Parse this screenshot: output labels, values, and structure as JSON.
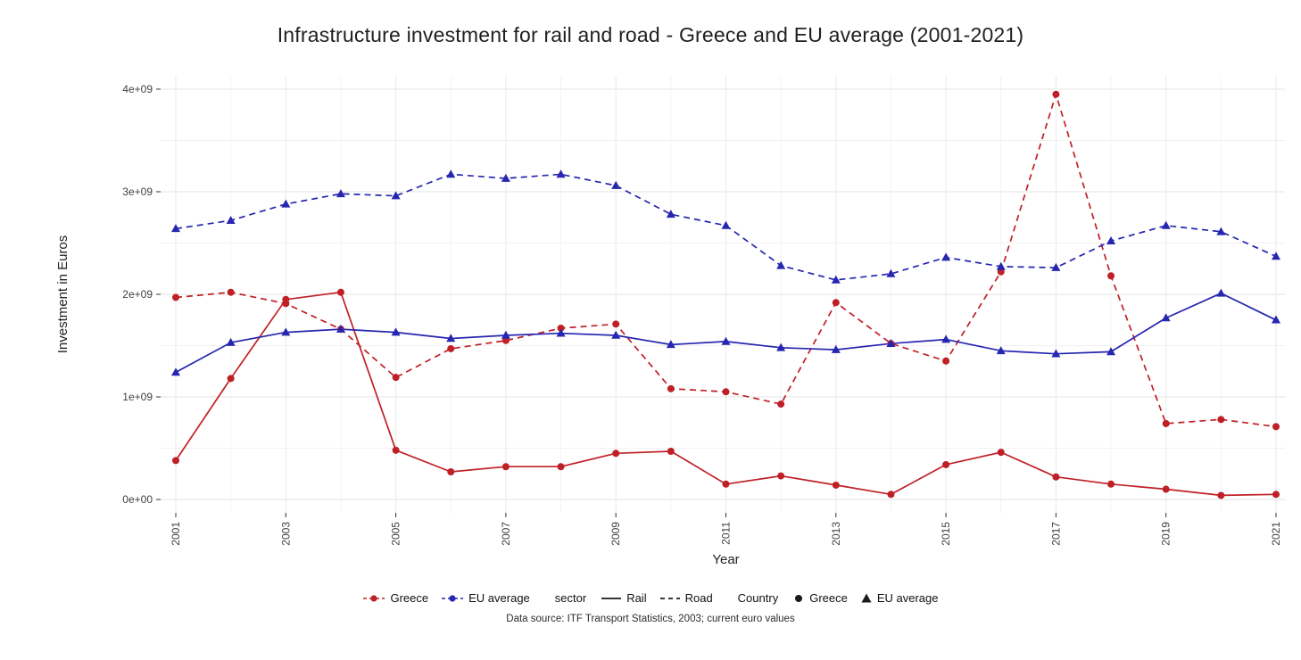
{
  "title": "Infrastructure investment for rail and road - Greece and EU average (2001-2021)",
  "caption": "Data source: ITF Transport Statistics, 2003; current euro values",
  "legend": {
    "greece": "Greece",
    "eu": "EU average",
    "sector_title": "sector",
    "rail": "Rail",
    "road": "Road",
    "country_title": "Country",
    "country_greece": "Greece",
    "country_eu": "EU average"
  },
  "chart_data": {
    "type": "line",
    "title": "Infrastructure investment for rail and road - Greece and EU average (2001-2021)",
    "xlabel": "Year",
    "ylabel": "Investment in Euros",
    "values_unit": "billions of euros",
    "x": [
      2001,
      2002,
      2003,
      2004,
      2005,
      2006,
      2007,
      2008,
      2009,
      2010,
      2011,
      2012,
      2013,
      2014,
      2015,
      2016,
      2017,
      2018,
      2019,
      2020,
      2021
    ],
    "x_ticks": [
      2001,
      2003,
      2005,
      2007,
      2009,
      2011,
      2013,
      2015,
      2017,
      2019,
      2021
    ],
    "y_ticks": [
      0,
      1,
      2,
      3,
      4
    ],
    "y_tick_labels": [
      "0e+00",
      "1e+09",
      "2e+09",
      "3e+09",
      "4e+09"
    ],
    "ylim_billions": [
      -0.13,
      4.13
    ],
    "grid": true,
    "legend_position": "bottom",
    "colors": {
      "greece": "#bf2026",
      "eu": "#2626b0",
      "neutral": "#1a1a1a"
    },
    "series": [
      {
        "id": "greece-rail",
        "name": "Greece Rail",
        "country": "Greece",
        "sector": "Rail",
        "color": "#bf2026",
        "line": "solid",
        "marker": "circle",
        "values": [
          0.38,
          1.18,
          1.95,
          2.02,
          0.48,
          0.27,
          0.32,
          0.32,
          0.45,
          0.47,
          0.15,
          0.23,
          0.14,
          0.05,
          0.34,
          0.46,
          0.22,
          0.15,
          0.1,
          0.04,
          0.05
        ]
      },
      {
        "id": "greece-road",
        "name": "Greece Road",
        "country": "Greece",
        "sector": "Road",
        "color": "#bf2026",
        "line": "dashed",
        "marker": "circle",
        "values": [
          1.97,
          2.02,
          1.91,
          1.66,
          1.19,
          1.47,
          1.55,
          1.67,
          1.71,
          1.08,
          1.05,
          0.93,
          1.92,
          1.52,
          1.35,
          2.22,
          3.95,
          2.18,
          0.74,
          0.78,
          0.71
        ]
      },
      {
        "id": "eu-rail",
        "name": "EU average Rail",
        "country": "EU average",
        "sector": "Rail",
        "color": "#2626b0",
        "line": "solid",
        "marker": "triangle",
        "values": [
          1.24,
          1.53,
          1.63,
          1.66,
          1.63,
          1.57,
          1.6,
          1.62,
          1.6,
          1.51,
          1.54,
          1.48,
          1.46,
          1.52,
          1.56,
          1.45,
          1.42,
          1.44,
          1.77,
          2.01,
          1.75
        ]
      },
      {
        "id": "eu-road",
        "name": "EU average Road",
        "country": "EU average",
        "sector": "Road",
        "color": "#2626b0",
        "line": "dashed",
        "marker": "triangle",
        "values": [
          2.64,
          2.72,
          2.88,
          2.98,
          2.96,
          3.17,
          3.13,
          3.17,
          3.06,
          2.78,
          2.67,
          2.28,
          2.14,
          2.2,
          2.36,
          2.27,
          2.26,
          2.52,
          2.67,
          2.61,
          2.37
        ]
      }
    ]
  }
}
